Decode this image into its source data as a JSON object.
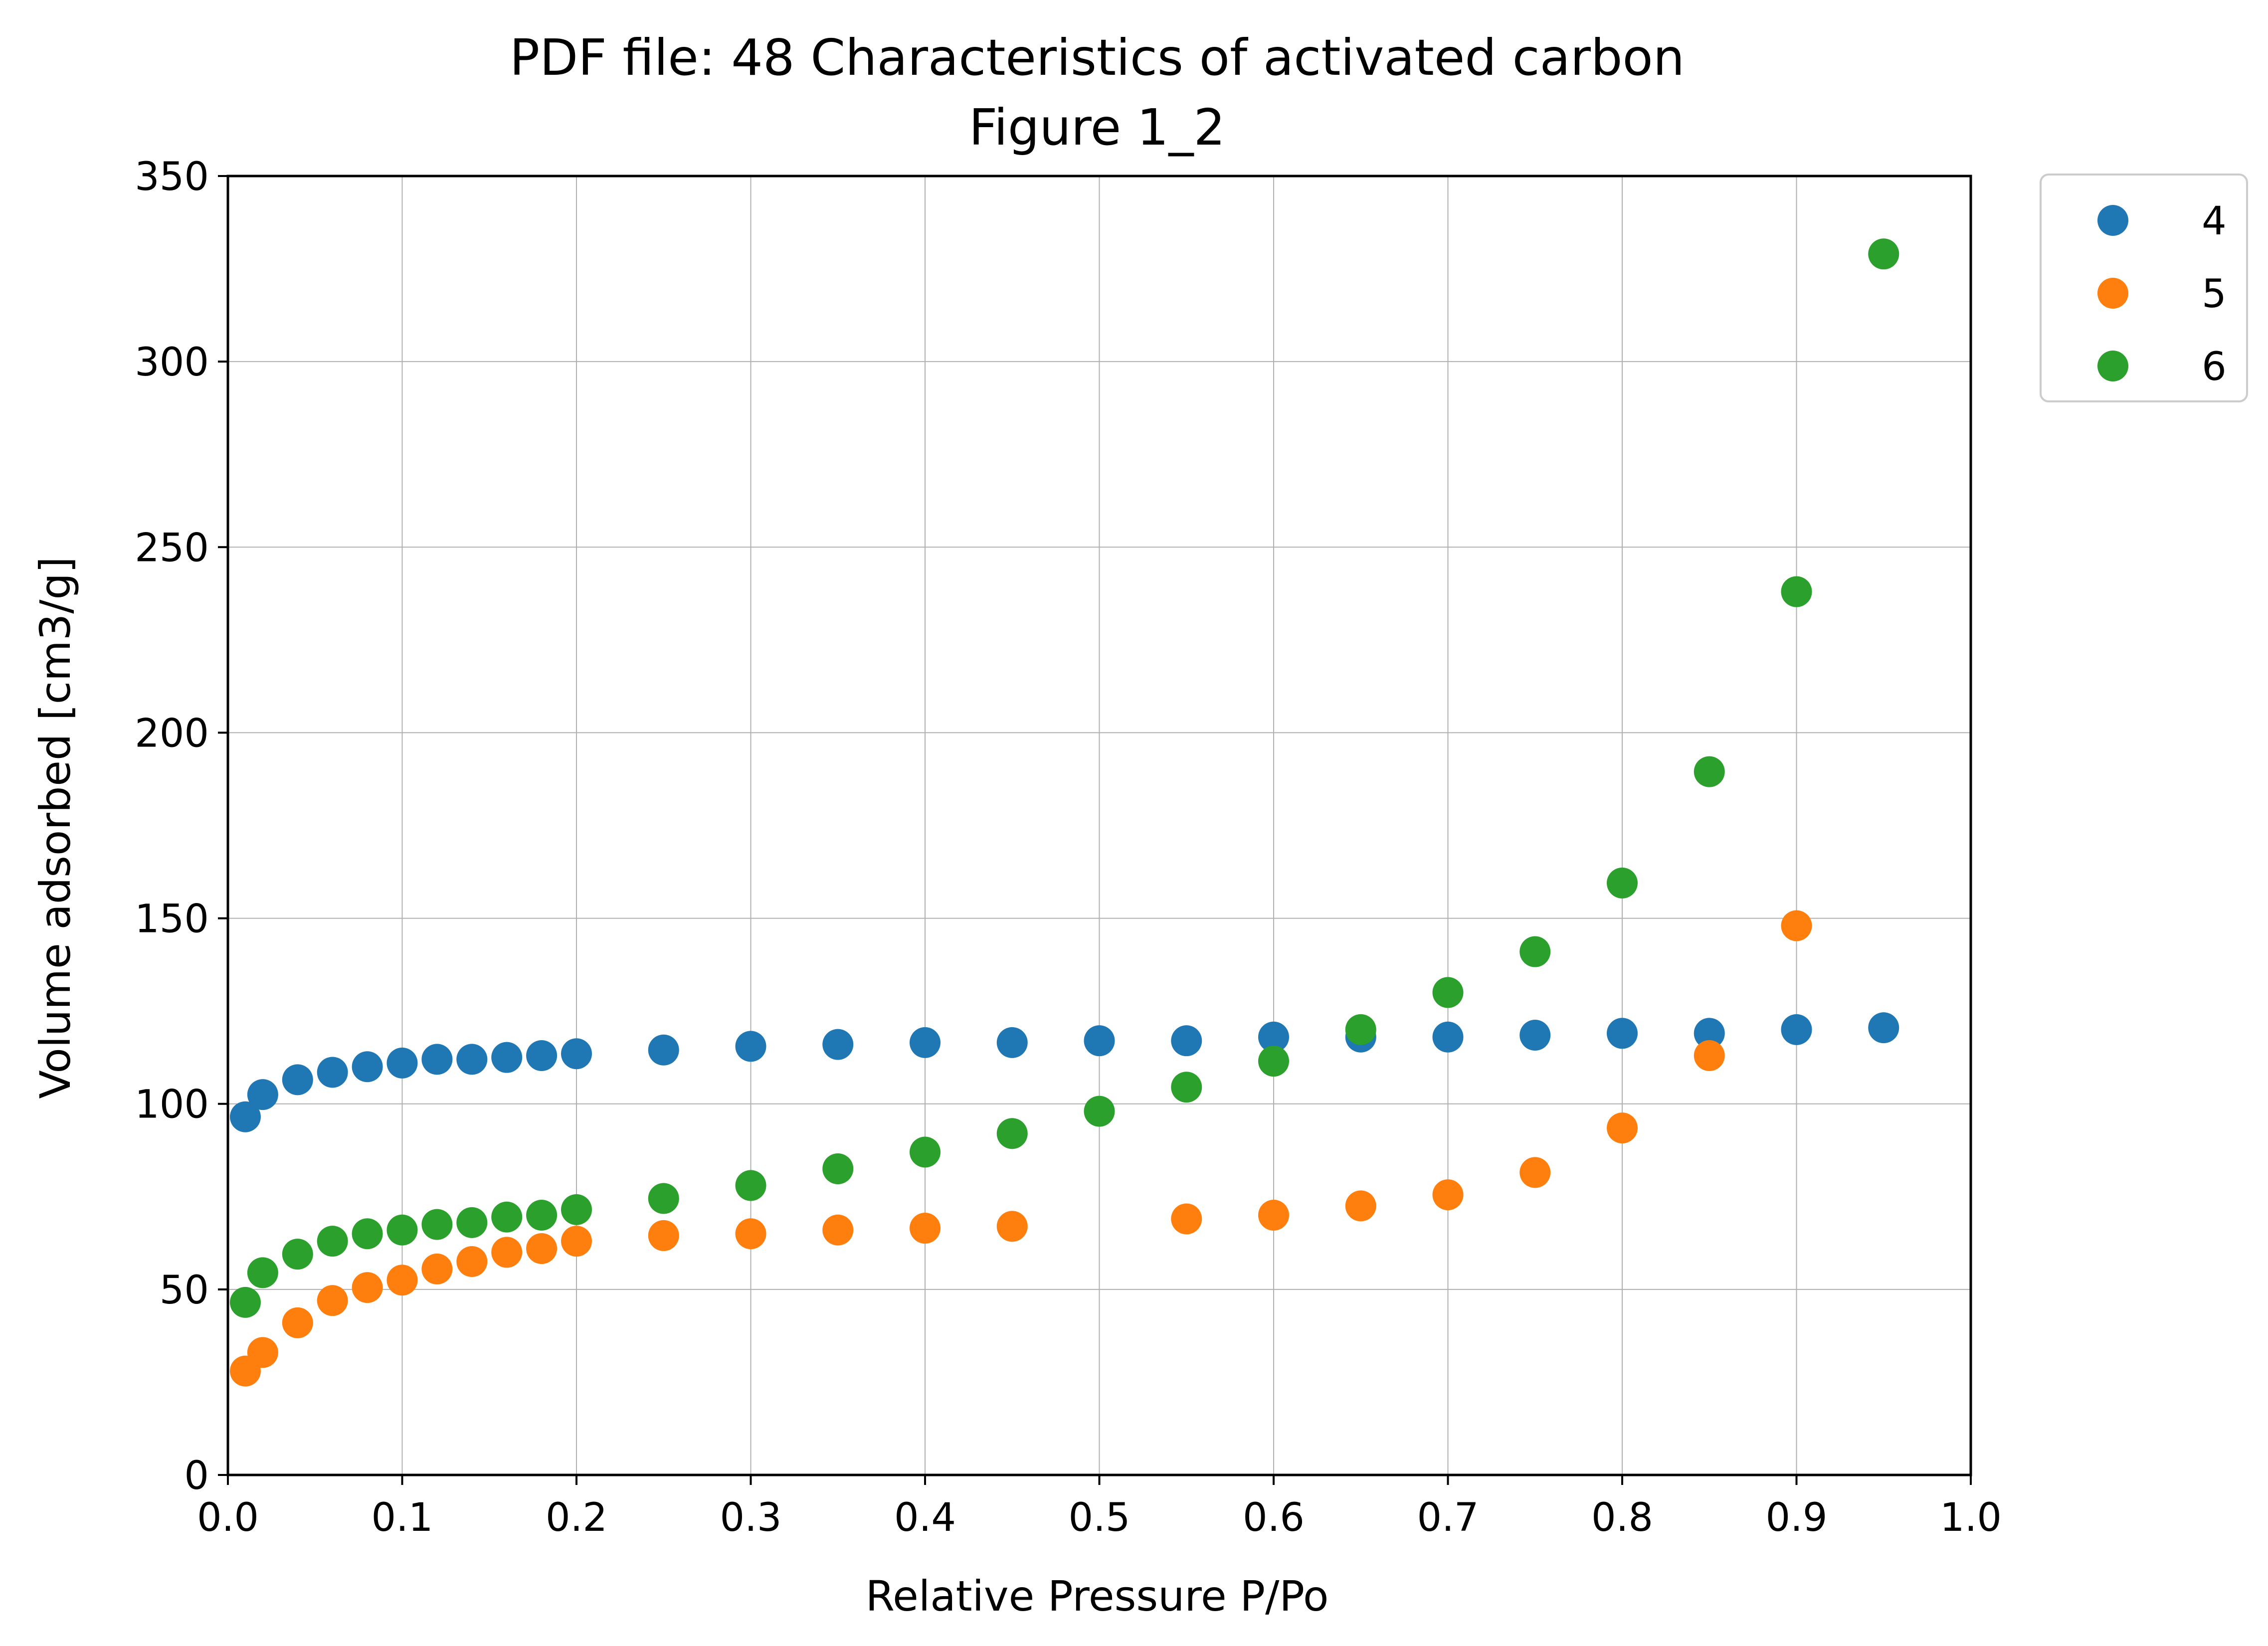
{
  "chart_data": {
    "type": "scatter",
    "title": "PDF file: 48 Characteristics of activated carbon",
    "subtitle": "Figure 1_2",
    "xlabel": "Relative Pressure P/Po",
    "ylabel": "Volume adsorbed [cm3/g]",
    "xlim": [
      0.0,
      1.0
    ],
    "ylim": [
      0,
      350
    ],
    "xticks": [
      "0.0",
      "0.1",
      "0.2",
      "0.3",
      "0.4",
      "0.5",
      "0.6",
      "0.7",
      "0.8",
      "0.9",
      "1.0"
    ],
    "yticks": [
      "0",
      "50",
      "100",
      "150",
      "200",
      "250",
      "300",
      "350"
    ],
    "grid": true,
    "legend_position": "outside-top-right",
    "series": [
      {
        "name": "4",
        "color": "#1f77b4",
        "points": [
          [
            0.01,
            96.5
          ],
          [
            0.02,
            102.5
          ],
          [
            0.04,
            106.5
          ],
          [
            0.06,
            108.5
          ],
          [
            0.08,
            110
          ],
          [
            0.1,
            111
          ],
          [
            0.12,
            112
          ],
          [
            0.14,
            112
          ],
          [
            0.16,
            112.5
          ],
          [
            0.18,
            113
          ],
          [
            0.2,
            113.5
          ],
          [
            0.25,
            114.5
          ],
          [
            0.3,
            115.5
          ],
          [
            0.35,
            116
          ],
          [
            0.4,
            116.5
          ],
          [
            0.45,
            116.5
          ],
          [
            0.5,
            117
          ],
          [
            0.55,
            117
          ],
          [
            0.6,
            118
          ],
          [
            0.65,
            118
          ],
          [
            0.7,
            118
          ],
          [
            0.75,
            118.5
          ],
          [
            0.8,
            119
          ],
          [
            0.85,
            119
          ],
          [
            0.9,
            120
          ],
          [
            0.95,
            120.5
          ]
        ]
      },
      {
        "name": "5",
        "color": "#ff7f0e",
        "points": [
          [
            0.01,
            28
          ],
          [
            0.02,
            33
          ],
          [
            0.04,
            41
          ],
          [
            0.06,
            47
          ],
          [
            0.08,
            50.5
          ],
          [
            0.1,
            52.5
          ],
          [
            0.12,
            55.5
          ],
          [
            0.14,
            57.5
          ],
          [
            0.16,
            60
          ],
          [
            0.18,
            61
          ],
          [
            0.2,
            63
          ],
          [
            0.25,
            64.5
          ],
          [
            0.3,
            65
          ],
          [
            0.35,
            66
          ],
          [
            0.4,
            66.5
          ],
          [
            0.45,
            67
          ],
          [
            0.55,
            69
          ],
          [
            0.6,
            70
          ],
          [
            0.65,
            72.5
          ],
          [
            0.7,
            75.5
          ],
          [
            0.75,
            81.5
          ],
          [
            0.8,
            93.5
          ],
          [
            0.85,
            113
          ],
          [
            0.9,
            148
          ]
        ]
      },
      {
        "name": "6",
        "color": "#2ca02c",
        "points": [
          [
            0.01,
            46.5
          ],
          [
            0.02,
            54.5
          ],
          [
            0.04,
            59.5
          ],
          [
            0.06,
            63
          ],
          [
            0.08,
            65
          ],
          [
            0.1,
            66
          ],
          [
            0.12,
            67.5
          ],
          [
            0.14,
            68
          ],
          [
            0.16,
            69.5
          ],
          [
            0.18,
            70
          ],
          [
            0.2,
            71.5
          ],
          [
            0.25,
            74.5
          ],
          [
            0.3,
            78
          ],
          [
            0.35,
            82.5
          ],
          [
            0.4,
            87
          ],
          [
            0.45,
            92
          ],
          [
            0.5,
            98
          ],
          [
            0.55,
            104.5
          ],
          [
            0.6,
            111.5
          ],
          [
            0.65,
            120
          ],
          [
            0.7,
            130
          ],
          [
            0.75,
            141
          ],
          [
            0.8,
            159.5
          ],
          [
            0.85,
            189.5
          ],
          [
            0.9,
            238
          ],
          [
            0.95,
            329
          ]
        ]
      }
    ]
  }
}
